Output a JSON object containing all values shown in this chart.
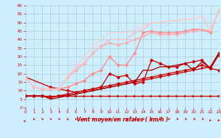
{
  "title": "",
  "xlabel": "Vent moyen/en rafales ( km/h )",
  "xlim": [
    0,
    23
  ],
  "ylim": [
    0,
    60
  ],
  "yticks": [
    0,
    5,
    10,
    15,
    20,
    25,
    30,
    35,
    40,
    45,
    50,
    55,
    60
  ],
  "xticks": [
    0,
    1,
    2,
    3,
    4,
    5,
    6,
    7,
    8,
    9,
    10,
    11,
    12,
    13,
    14,
    15,
    16,
    17,
    18,
    19,
    20,
    21,
    22,
    23
  ],
  "bg_color": "#cceeff",
  "grid_color": "#aacccc",
  "series": [
    {
      "x": [
        0,
        1,
        2,
        3,
        4,
        5,
        6,
        7,
        8,
        9,
        10,
        11,
        12,
        13,
        14,
        15,
        16,
        17,
        18,
        19,
        20,
        21,
        22,
        23
      ],
      "y": [
        7,
        7,
        7,
        7,
        7,
        7,
        7,
        7,
        7,
        7,
        7,
        7,
        7,
        7,
        7,
        7,
        7,
        7,
        7,
        7,
        7,
        7,
        7,
        7
      ],
      "color": "#cc0000",
      "lw": 1.0,
      "marker": ">",
      "ms": 2.5,
      "alpha": 1.0
    },
    {
      "x": [
        0,
        1,
        2,
        3,
        4,
        5,
        6,
        7,
        8,
        9,
        10,
        11,
        12,
        13,
        14,
        15,
        16,
        17,
        18,
        19,
        20,
        21,
        22,
        23
      ],
      "y": [
        7,
        7,
        7,
        6,
        7,
        7,
        8,
        9,
        10,
        11,
        12,
        13,
        14,
        15,
        16,
        17,
        18,
        19,
        20,
        21,
        22,
        23,
        24,
        32
      ],
      "color": "#cc0000",
      "lw": 1.0,
      "marker": "v",
      "ms": 2.5,
      "alpha": 1.0
    },
    {
      "x": [
        0,
        1,
        2,
        3,
        4,
        5,
        6,
        7,
        8,
        9,
        10,
        11,
        12,
        13,
        14,
        15,
        16,
        17,
        18,
        19,
        20,
        21,
        22,
        23
      ],
      "y": [
        7,
        7,
        7,
        6,
        7,
        8,
        9,
        10,
        11,
        12,
        13,
        14,
        15,
        16,
        17,
        18,
        19,
        20,
        21,
        22,
        23,
        25,
        23,
        31
      ],
      "color": "#cc0000",
      "lw": 1.0,
      "marker": "D",
      "ms": 2.5,
      "alpha": 1.0
    },
    {
      "x": [
        0,
        3,
        4,
        5,
        6,
        7,
        8,
        9,
        10,
        11,
        12,
        13,
        14,
        15,
        16,
        17,
        18,
        19,
        20,
        21,
        22,
        23
      ],
      "y": [
        18,
        12,
        11,
        10,
        9,
        10,
        11,
        12,
        20,
        18,
        19,
        14,
        15,
        28,
        26,
        24,
        24,
        26,
        27,
        28,
        23,
        22
      ],
      "color": "#cc0000",
      "lw": 1.0,
      "marker": "D",
      "ms": 2.5,
      "alpha": 1.0
    },
    {
      "x": [
        0,
        1,
        2,
        3,
        4,
        5,
        6,
        7,
        8,
        9,
        10,
        11,
        12,
        13,
        14,
        15,
        16,
        17,
        18,
        19,
        20,
        21,
        22,
        23
      ],
      "y": [
        7,
        7,
        7,
        5,
        6,
        7,
        8,
        9,
        10,
        11,
        12,
        13,
        14,
        15,
        22,
        22,
        24,
        24,
        25,
        26,
        22,
        27,
        23,
        32
      ],
      "color": "#aa0000",
      "lw": 1.0,
      "marker": null,
      "ms": 0,
      "alpha": 1.0
    },
    {
      "x": [
        0,
        1,
        2,
        3,
        4,
        5,
        6,
        7,
        8,
        9,
        10,
        11,
        12,
        13,
        14,
        15,
        16,
        17,
        18,
        19,
        20,
        21,
        22,
        23
      ],
      "y": [
        18,
        12,
        11,
        11,
        11,
        12,
        14,
        16,
        20,
        22,
        30,
        25,
        25,
        32,
        44,
        45,
        44,
        44,
        44,
        45,
        46,
        46,
        44,
        57
      ],
      "color": "#ff8888",
      "lw": 1.0,
      "marker": "D",
      "ms": 2.5,
      "alpha": 1.0
    },
    {
      "x": [
        0,
        1,
        2,
        3,
        4,
        5,
        6,
        7,
        8,
        9,
        10,
        11,
        12,
        13,
        14,
        15,
        16,
        17,
        18,
        19,
        20,
        21,
        22,
        23
      ],
      "y": [
        18,
        12,
        11,
        11,
        11,
        18,
        22,
        26,
        32,
        36,
        38,
        37,
        38,
        40,
        42,
        44,
        43,
        43,
        43,
        44,
        45,
        46,
        45,
        57
      ],
      "color": "#ffaaaa",
      "lw": 1.0,
      "marker": "D",
      "ms": 2.5,
      "alpha": 1.0
    },
    {
      "x": [
        0,
        1,
        2,
        3,
        4,
        5,
        6,
        7,
        8,
        9,
        10,
        11,
        12,
        13,
        14,
        15,
        16,
        17,
        18,
        19,
        20,
        21,
        22,
        23
      ],
      "y": [
        18,
        12,
        11,
        11,
        11,
        18,
        24,
        26,
        32,
        36,
        40,
        40,
        40,
        44,
        46,
        50,
        50,
        51,
        51,
        52,
        52,
        54,
        45,
        57
      ],
      "color": "#ffbbbb",
      "lw": 1.0,
      "marker": null,
      "ms": 0,
      "alpha": 1.0
    },
    {
      "x": [
        0,
        1,
        2,
        3,
        4,
        5,
        6,
        7,
        8,
        9,
        10,
        11,
        12,
        13,
        14,
        15,
        16,
        17,
        18,
        19,
        20,
        21,
        22,
        23
      ],
      "y": [
        18,
        12,
        11,
        11,
        11,
        18,
        24,
        30,
        36,
        40,
        44,
        44,
        44,
        46,
        48,
        50,
        50,
        51,
        51,
        52,
        52,
        54,
        45,
        58
      ],
      "color": "#ffcccc",
      "lw": 1.0,
      "marker": null,
      "ms": 0,
      "alpha": 1.0
    }
  ],
  "arrow_angles": [
    45,
    200,
    200,
    200,
    200,
    200,
    200,
    200,
    200,
    200,
    200,
    200,
    200,
    215,
    215,
    215,
    220,
    225,
    225,
    225,
    230,
    230,
    235,
    235
  ]
}
